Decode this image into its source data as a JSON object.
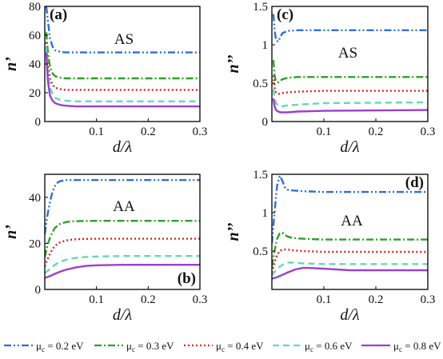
{
  "figure": {
    "legend": [
      {
        "label": "μc = 0.2 eV",
        "sub": "c",
        "text": " = 0.2 eV",
        "color": "#2f6fd8",
        "dash": "9,3,2,3,2,3"
      },
      {
        "label": "μc = 0.3 eV",
        "sub": "c",
        "text": " = 0.3 eV",
        "color": "#2ea02a",
        "dash": "9,3,2,3"
      },
      {
        "label": "μc = 0.4 eV",
        "sub": "c",
        "text": " = 0.4 eV",
        "color": "#e02020",
        "dash": "2,3"
      },
      {
        "label": "μc = 0.6 eV",
        "sub": "c",
        "text": " = 0.6 eV",
        "color": "#63d9b4",
        "dash": "8,5"
      },
      {
        "label": "μc = 0.8 eV",
        "sub": "c",
        "text": " = 0.8 eV",
        "color": "#9b3fd0",
        "dash": ""
      }
    ]
  },
  "chart_data": [
    {
      "type": "line",
      "panel_label": "(a)",
      "annotation": "AS",
      "xlabel": "d/λ",
      "ylabel": "n’",
      "xlim": [
        0,
        0.3
      ],
      "ylim": [
        0,
        80
      ],
      "xticks": [
        "0.1",
        "0.2",
        "0.3"
      ],
      "xtick_values": [
        0.1,
        0.2,
        0.3
      ],
      "yticks": [
        "0",
        "20",
        "40",
        "60",
        "80"
      ],
      "ytick_values": [
        0,
        20,
        40,
        60,
        80
      ],
      "series": [
        {
          "name": "μc = 0.2 eV",
          "x": [
            0.003,
            0.006,
            0.01,
            0.015,
            0.02,
            0.03,
            0.04,
            0.06,
            0.08,
            0.1,
            0.3
          ],
          "y": [
            80,
            70,
            58,
            52,
            49.5,
            48.5,
            48,
            48,
            48,
            48,
            48
          ]
        },
        {
          "name": "μc = 0.3 eV",
          "x": [
            0.003,
            0.006,
            0.01,
            0.015,
            0.02,
            0.03,
            0.04,
            0.06,
            0.08,
            0.1,
            0.3
          ],
          "y": [
            62,
            48,
            38,
            33.5,
            31.5,
            30.5,
            30,
            30,
            30,
            30,
            30
          ]
        },
        {
          "name": "μc = 0.4 eV",
          "x": [
            0.003,
            0.006,
            0.01,
            0.015,
            0.02,
            0.03,
            0.04,
            0.06,
            0.08,
            0.1,
            0.3
          ],
          "y": [
            55,
            40,
            30,
            25.5,
            23.5,
            22.5,
            22,
            22,
            22,
            22,
            22
          ]
        },
        {
          "name": "μc = 0.6 eV",
          "x": [
            0.003,
            0.006,
            0.01,
            0.015,
            0.02,
            0.03,
            0.04,
            0.06,
            0.08,
            0.1,
            0.3
          ],
          "y": [
            52,
            34,
            24,
            19,
            16.5,
            15,
            14.5,
            14,
            14,
            14,
            14
          ]
        },
        {
          "name": "μc = 0.8 eV",
          "x": [
            0.003,
            0.006,
            0.01,
            0.015,
            0.02,
            0.03,
            0.04,
            0.06,
            0.08,
            0.1,
            0.3
          ],
          "y": [
            48,
            28,
            18,
            14.5,
            12.8,
            11.5,
            11,
            10.5,
            10.5,
            10.5,
            10.5
          ]
        }
      ]
    },
    {
      "type": "line",
      "panel_label": "(c)",
      "annotation": "AS",
      "xlabel": "d/λ",
      "ylabel": "n’’",
      "xlim": [
        0,
        0.3
      ],
      "ylim": [
        0,
        1.5
      ],
      "xticks": [
        "0.1",
        "0.2",
        "0.3"
      ],
      "xtick_values": [
        0.1,
        0.2,
        0.3
      ],
      "yticks": [
        "0",
        "0.5",
        "1",
        "1.5"
      ],
      "ytick_values": [
        0,
        0.5,
        1,
        1.5
      ],
      "series": [
        {
          "name": "μc = 0.2 eV",
          "x": [
            0.003,
            0.005,
            0.008,
            0.012,
            0.016,
            0.02,
            0.03,
            0.05,
            0.1,
            0.3
          ],
          "y": [
            1.4,
            1.2,
            1.06,
            1.04,
            1.1,
            1.15,
            1.18,
            1.19,
            1.19,
            1.19
          ]
        },
        {
          "name": "μc = 0.3 eV",
          "x": [
            0.003,
            0.005,
            0.008,
            0.012,
            0.016,
            0.02,
            0.03,
            0.05,
            0.1,
            0.3
          ],
          "y": [
            0.8,
            0.6,
            0.52,
            0.51,
            0.53,
            0.55,
            0.57,
            0.58,
            0.58,
            0.58
          ]
        },
        {
          "name": "μc = 0.4 eV",
          "x": [
            0.003,
            0.005,
            0.008,
            0.012,
            0.016,
            0.02,
            0.03,
            0.05,
            0.1,
            0.3
          ],
          "y": [
            0.6,
            0.44,
            0.38,
            0.36,
            0.36,
            0.37,
            0.38,
            0.39,
            0.4,
            0.4
          ]
        },
        {
          "name": "μc = 0.6 eV",
          "x": [
            0.003,
            0.005,
            0.008,
            0.012,
            0.016,
            0.02,
            0.03,
            0.05,
            0.1,
            0.3
          ],
          "y": [
            0.42,
            0.3,
            0.24,
            0.21,
            0.2,
            0.2,
            0.21,
            0.22,
            0.24,
            0.25
          ]
        },
        {
          "name": "μc = 0.8 eV",
          "x": [
            0.003,
            0.005,
            0.008,
            0.012,
            0.016,
            0.02,
            0.03,
            0.05,
            0.1,
            0.3
          ],
          "y": [
            0.3,
            0.2,
            0.15,
            0.13,
            0.12,
            0.12,
            0.12,
            0.13,
            0.14,
            0.15
          ]
        }
      ]
    },
    {
      "type": "line",
      "panel_label": "(b)",
      "annotation": "AA",
      "xlabel": "d/λ",
      "ylabel": "n’",
      "xlim": [
        0,
        0.3
      ],
      "ylim": [
        0,
        50
      ],
      "xticks": [
        "0.1",
        "0.2",
        "0.3"
      ],
      "xtick_values": [
        0.1,
        0.2,
        0.3
      ],
      "yticks": [
        "0",
        "20",
        "40"
      ],
      "ytick_values": [
        0,
        20,
        40
      ],
      "series": [
        {
          "name": "μc = 0.2 eV",
          "x": [
            0,
            0.005,
            0.01,
            0.015,
            0.02,
            0.025,
            0.03,
            0.04,
            0.05,
            0.07,
            0.1,
            0.3
          ],
          "y": [
            24,
            32,
            38,
            42.5,
            45,
            46.5,
            47,
            47.5,
            47.5,
            47.5,
            47.5,
            47.5
          ]
        },
        {
          "name": "μc = 0.3 eV",
          "x": [
            0,
            0.005,
            0.01,
            0.015,
            0.02,
            0.03,
            0.04,
            0.05,
            0.07,
            0.1,
            0.3
          ],
          "y": [
            14,
            19,
            22.5,
            25,
            26.8,
            28.5,
            29.2,
            29.5,
            29.7,
            29.8,
            29.8
          ]
        },
        {
          "name": "μc = 0.4 eV",
          "x": [
            0,
            0.005,
            0.01,
            0.015,
            0.02,
            0.03,
            0.04,
            0.05,
            0.07,
            0.1,
            0.3
          ],
          "y": [
            10,
            13,
            15.5,
            17.5,
            19,
            20.5,
            21.2,
            21.6,
            21.9,
            22,
            22
          ]
        },
        {
          "name": "μc = 0.6 eV",
          "x": [
            0,
            0.01,
            0.02,
            0.03,
            0.04,
            0.05,
            0.07,
            0.1,
            0.15,
            0.3
          ],
          "y": [
            7,
            9,
            10.8,
            12,
            12.8,
            13.4,
            14,
            14.3,
            14.5,
            14.5
          ]
        },
        {
          "name": "μc = 0.8 eV",
          "x": [
            0,
            0.01,
            0.02,
            0.03,
            0.04,
            0.06,
            0.08,
            0.1,
            0.15,
            0.3
          ],
          "y": [
            5,
            5.8,
            6.8,
            7.7,
            8.5,
            9.6,
            10.2,
            10.5,
            10.7,
            10.7
          ]
        }
      ]
    },
    {
      "type": "line",
      "panel_label": "(d)",
      "annotation": "AA",
      "xlabel": "d/λ",
      "ylabel": "n’’",
      "xlim": [
        0,
        0.3
      ],
      "ylim": [
        0,
        1.5
      ],
      "xticks": [
        "0.1",
        "0.2",
        "0.3"
      ],
      "xtick_values": [
        0.1,
        0.2,
        0.3
      ],
      "yticks": [
        "0.5",
        "1",
        "1.5"
      ],
      "ytick_values": [
        0.5,
        1,
        1.5
      ],
      "series": [
        {
          "name": "μc = 0.2 eV",
          "x": [
            0,
            0.005,
            0.01,
            0.015,
            0.02,
            0.025,
            0.03,
            0.04,
            0.06,
            0.1,
            0.3
          ],
          "y": [
            0.6,
            1.0,
            1.35,
            1.48,
            1.42,
            1.33,
            1.3,
            1.29,
            1.28,
            1.27,
            1.27
          ]
        },
        {
          "name": "μc = 0.3 eV",
          "x": [
            0,
            0.005,
            0.01,
            0.015,
            0.02,
            0.025,
            0.03,
            0.04,
            0.06,
            0.1,
            0.3
          ],
          "y": [
            0.3,
            0.5,
            0.66,
            0.73,
            0.74,
            0.71,
            0.69,
            0.67,
            0.66,
            0.65,
            0.65
          ]
        },
        {
          "name": "μc = 0.4 eV",
          "x": [
            0,
            0.005,
            0.01,
            0.015,
            0.02,
            0.03,
            0.04,
            0.06,
            0.1,
            0.3
          ],
          "y": [
            0.22,
            0.35,
            0.45,
            0.5,
            0.52,
            0.52,
            0.51,
            0.5,
            0.49,
            0.49
          ]
        },
        {
          "name": "μc = 0.6 eV",
          "x": [
            0,
            0.01,
            0.02,
            0.03,
            0.04,
            0.06,
            0.1,
            0.3
          ],
          "y": [
            0.18,
            0.27,
            0.32,
            0.35,
            0.35,
            0.34,
            0.33,
            0.33
          ]
        },
        {
          "name": "μc = 0.8 eV",
          "x": [
            0,
            0.01,
            0.02,
            0.03,
            0.045,
            0.06,
            0.07,
            0.1,
            0.15,
            0.3
          ],
          "y": [
            0.14,
            0.16,
            0.19,
            0.22,
            0.26,
            0.28,
            0.28,
            0.27,
            0.25,
            0.25
          ]
        }
      ]
    }
  ]
}
